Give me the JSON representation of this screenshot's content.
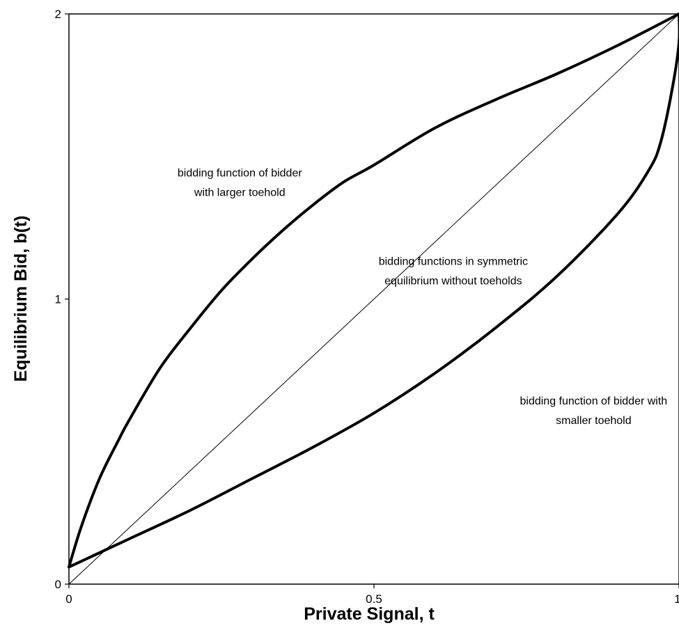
{
  "chart_data": {
    "type": "line",
    "title": "",
    "xlabel": "Private Signal,  t",
    "ylabel": "Equilibrium Bid,  b(t)",
    "xlim": [
      0,
      1
    ],
    "ylim": [
      0,
      2
    ],
    "x_ticks": [
      {
        "value": 0,
        "label": "0"
      },
      {
        "value": 0.5,
        "label": "0.5"
      },
      {
        "value": 1,
        "label": "1"
      }
    ],
    "y_ticks": [
      {
        "value": 0,
        "label": "0"
      },
      {
        "value": 1,
        "label": "1"
      },
      {
        "value": 2,
        "label": "2"
      }
    ],
    "grid": false,
    "legend": "none",
    "series": [
      {
        "style": "thick",
        "color": "#000000",
        "x": [
          0,
          0.02,
          0.05,
          0.08,
          0.1,
          0.15,
          0.2,
          0.25,
          0.3,
          0.35,
          0.4,
          0.45,
          0.5,
          0.6,
          0.7,
          0.8,
          0.9,
          1.0
        ],
        "y": [
          0.06,
          0.2,
          0.37,
          0.5,
          0.58,
          0.76,
          0.9,
          1.03,
          1.14,
          1.24,
          1.33,
          1.41,
          1.47,
          1.6,
          1.7,
          1.79,
          1.89,
          2.0
        ]
      },
      {
        "style": "thin",
        "color": "#000000",
        "x": [
          0,
          1
        ],
        "y": [
          0,
          2
        ]
      },
      {
        "style": "thick",
        "color": "#000000",
        "x": [
          0,
          0.05,
          0.1,
          0.2,
          0.3,
          0.4,
          0.5,
          0.6,
          0.7,
          0.8,
          0.9,
          0.95,
          0.97,
          0.99,
          1.0,
          1.0
        ],
        "y": [
          0.06,
          0.11,
          0.16,
          0.26,
          0.37,
          0.48,
          0.6,
          0.74,
          0.9,
          1.08,
          1.3,
          1.45,
          1.55,
          1.75,
          1.9,
          2.0
        ]
      }
    ],
    "annotations": [
      {
        "lines": [
          "bidding function of bidder",
          "with larger toehold"
        ],
        "at": [
          0.28,
          1.43
        ]
      },
      {
        "lines": [
          "bidding functions in symmetric",
          "equilibrium without toeholds"
        ],
        "at": [
          0.63,
          1.12
        ]
      },
      {
        "lines": [
          "bidding function of bidder with",
          "smaller toehold"
        ],
        "at": [
          0.86,
          0.63
        ]
      }
    ]
  }
}
